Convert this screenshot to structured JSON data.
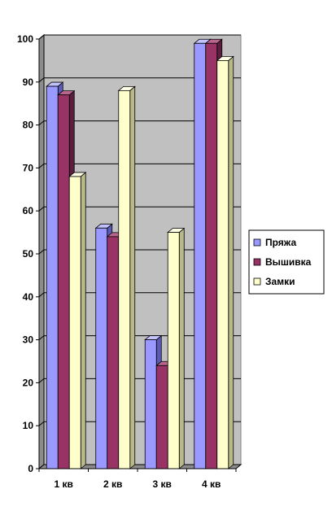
{
  "chart_data": {
    "type": "bar",
    "categories": [
      "1 кв",
      "2 кв",
      "3 кв",
      "4 кв"
    ],
    "series": [
      {
        "name": "Пряжа",
        "values": [
          89,
          56,
          30,
          99
        ]
      },
      {
        "name": "Вышивка",
        "values": [
          87,
          54,
          24,
          99
        ]
      },
      {
        "name": "Замки",
        "values": [
          68,
          88,
          55,
          95
        ]
      }
    ],
    "title": "",
    "xlabel": "",
    "ylabel": "",
    "ylim": [
      0,
      100
    ],
    "yticks": [
      0,
      10,
      20,
      30,
      40,
      50,
      60,
      70,
      80,
      90,
      100
    ],
    "grid": true,
    "legend_position": "right",
    "three_d": true
  },
  "colors": {
    "series": [
      "#9999ff",
      "#993366",
      "#ffffcc"
    ],
    "series_side": [
      "#5c5cb8",
      "#5c1e3e",
      "#b8b888"
    ],
    "series_top": [
      "#c2c2ff",
      "#b8668e",
      "#ffffe6"
    ],
    "plot_back": "#c0c0c0",
    "plot_side": "#8c8c8c",
    "plot_floor": "#8c8c8c",
    "gridline": "#000000"
  }
}
